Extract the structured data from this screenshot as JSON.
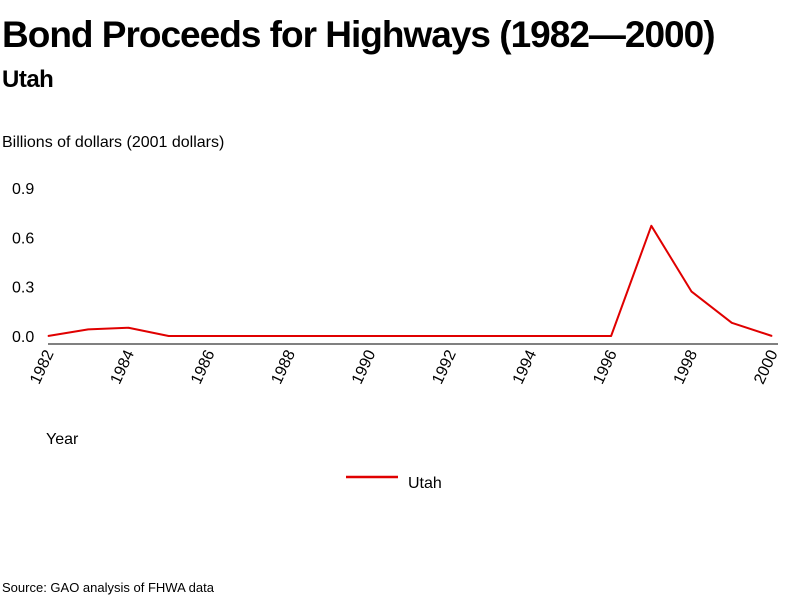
{
  "title": "Bond Proceeds for Highways (1982—2000)",
  "subtitle": "Utah",
  "source": "Source: GAO analysis of FHWA data",
  "colors": {
    "series": "#e00000",
    "axis": "#000000"
  },
  "chart_data": {
    "type": "line",
    "ylabel": "Billions of dollars (2001 dollars)",
    "xlabel": "Year",
    "x": [
      1982,
      1983,
      1984,
      1985,
      1986,
      1987,
      1988,
      1989,
      1990,
      1991,
      1992,
      1993,
      1994,
      1995,
      1996,
      1997,
      1998,
      1999,
      2000
    ],
    "xticks": [
      "1982",
      "1984",
      "1986",
      "1988",
      "1990",
      "1992",
      "1994",
      "1996",
      "1998",
      "2000"
    ],
    "yticks": [
      "0.0",
      "0.3",
      "0.6",
      "0.9"
    ],
    "ylim": [
      0,
      0.9
    ],
    "xlim": [
      1982,
      2000
    ],
    "grid": false,
    "legend_position": "bottom-center",
    "series": [
      {
        "name": "Utah",
        "color": "#e00000",
        "values": [
          0.0,
          0.04,
          0.05,
          0.0,
          0.0,
          0.0,
          0.0,
          0.0,
          0.0,
          0.0,
          0.0,
          0.0,
          0.0,
          0.0,
          0.0,
          0.67,
          0.27,
          0.08,
          0.0
        ]
      }
    ]
  }
}
